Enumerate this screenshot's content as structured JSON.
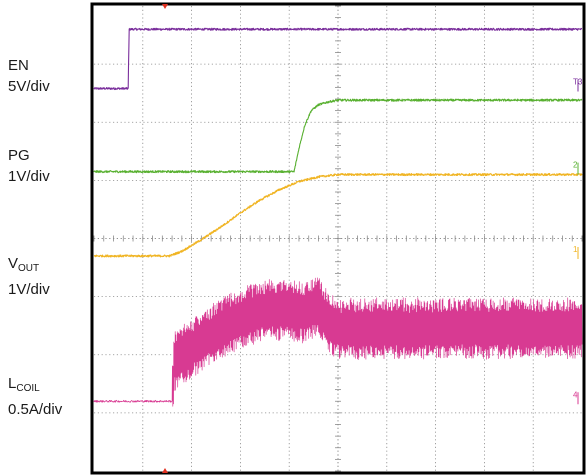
{
  "chart_data": {
    "type": "line",
    "title": "",
    "grid": true,
    "grid_divisions": {
      "x": 10,
      "y": 8
    },
    "xlim": [
      0,
      10
    ],
    "ylim": [
      0,
      8
    ],
    "channels": [
      {
        "id": "en",
        "label": {
          "main": "EN",
          "sub": "",
          "scale": "5V/div"
        },
        "color": "#7a2e9c",
        "marker": "T3",
        "x": [
          0,
          0.7,
          0.72,
          10
        ],
        "y": [
          6.58,
          6.58,
          7.6,
          7.6
        ]
      },
      {
        "id": "pg",
        "label": {
          "main": "PG",
          "sub": "",
          "scale": "1V/div"
        },
        "color": "#58b030",
        "marker": "2",
        "x": [
          0,
          4.1,
          4.2,
          4.32,
          4.45,
          4.6,
          4.8,
          5.0,
          10
        ],
        "y": [
          5.15,
          5.15,
          5.55,
          5.95,
          6.2,
          6.3,
          6.35,
          6.38,
          6.38
        ]
      },
      {
        "id": "vout",
        "label": {
          "main": "V",
          "sub": "OUT",
          "scale": "1V/div"
        },
        "color": "#f0b422",
        "marker": "1",
        "x": [
          0,
          1.55,
          1.8,
          2.2,
          2.6,
          3.0,
          3.4,
          3.8,
          4.2,
          4.6,
          5.0,
          10
        ],
        "y": [
          3.7,
          3.7,
          3.78,
          3.98,
          4.2,
          4.44,
          4.66,
          4.84,
          4.98,
          5.06,
          5.1,
          5.1
        ]
      },
      {
        "id": "lcoil",
        "label": {
          "main": "L",
          "sub": "COIL",
          "scale": "0.5A/div"
        },
        "color": "#d83a92",
        "marker": "4",
        "x": [
          0,
          1.6,
          1.65,
          2.0,
          2.4,
          2.8,
          3.2,
          3.6,
          4.0,
          4.3,
          4.6,
          4.8,
          5.0
        ],
        "y": [
          1.2,
          1.2,
          1.9,
          2.1,
          2.35,
          2.55,
          2.7,
          2.78,
          2.78,
          2.72,
          2.85,
          2.55,
          2.45
        ],
        "ripple_pp_div": 0.8
      }
    ]
  }
}
